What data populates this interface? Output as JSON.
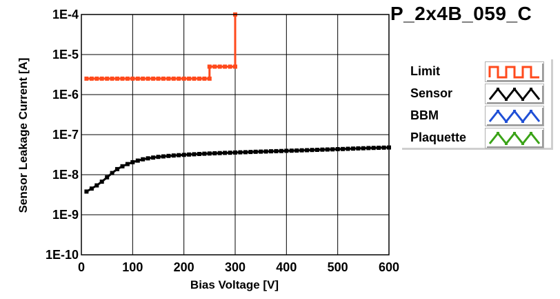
{
  "title": "P_2x4B_059_C",
  "chart_data": {
    "type": "line",
    "xlabel": "Bias Voltage [V]",
    "ylabel": "Sensor Leakage Current [A]",
    "xlim": [
      0,
      600
    ],
    "ylim": [
      1e-10,
      0.0001
    ],
    "yscale": "log",
    "grid": true,
    "x_ticks": [
      0,
      100,
      200,
      300,
      400,
      500,
      600
    ],
    "y_tick_labels": [
      "1E-4",
      "1E-5",
      "1E-6",
      "1E-7",
      "1E-8",
      "1E-9",
      "1E-10"
    ],
    "legend_position": "right",
    "series": [
      {
        "name": "Limit",
        "color": "#ff4a1c",
        "marker": "square",
        "x": [
          10,
          20,
          30,
          40,
          50,
          60,
          70,
          80,
          90,
          100,
          110,
          120,
          130,
          140,
          150,
          160,
          170,
          180,
          190,
          200,
          210,
          220,
          230,
          240,
          250,
          250,
          260,
          270,
          280,
          290,
          300,
          300
        ],
        "y": [
          2.5e-06,
          2.5e-06,
          2.5e-06,
          2.5e-06,
          2.5e-06,
          2.5e-06,
          2.5e-06,
          2.5e-06,
          2.5e-06,
          2.5e-06,
          2.5e-06,
          2.5e-06,
          2.5e-06,
          2.5e-06,
          2.5e-06,
          2.5e-06,
          2.5e-06,
          2.5e-06,
          2.5e-06,
          2.5e-06,
          2.5e-06,
          2.5e-06,
          2.5e-06,
          2.5e-06,
          2.5e-06,
          5e-06,
          5e-06,
          5e-06,
          5e-06,
          5e-06,
          5e-06,
          0.0001
        ]
      },
      {
        "name": "Sensor",
        "color": "#000000",
        "marker": "square",
        "x": [
          10,
          20,
          30,
          40,
          50,
          60,
          70,
          80,
          90,
          100,
          110,
          120,
          130,
          140,
          150,
          160,
          170,
          180,
          190,
          200,
          210,
          220,
          230,
          240,
          250,
          260,
          270,
          280,
          290,
          300,
          310,
          320,
          330,
          340,
          350,
          360,
          370,
          380,
          390,
          400,
          410,
          420,
          430,
          440,
          450,
          460,
          470,
          480,
          490,
          500,
          510,
          520,
          530,
          540,
          550,
          560,
          570,
          580,
          590,
          600
        ],
        "y": [
          3.8e-09,
          4.5e-09,
          5.4e-09,
          6.7e-09,
          8.6e-09,
          1.1e-08,
          1.38e-08,
          1.62e-08,
          1.84e-08,
          2.05e-08,
          2.25e-08,
          2.42e-08,
          2.56e-08,
          2.68e-08,
          2.78e-08,
          2.86e-08,
          2.94e-08,
          3.01e-08,
          3.07e-08,
          3.13e-08,
          3.19e-08,
          3.24e-08,
          3.29e-08,
          3.34e-08,
          3.38e-08,
          3.42e-08,
          3.46e-08,
          3.5e-08,
          3.54e-08,
          3.58e-08,
          3.62e-08,
          3.65e-08,
          3.69e-08,
          3.73e-08,
          3.77e-08,
          3.8e-08,
          3.84e-08,
          3.87e-08,
          3.91e-08,
          3.95e-08,
          3.98e-08,
          4.02e-08,
          4.06e-08,
          4.1e-08,
          4.14e-08,
          4.18e-08,
          4.22e-08,
          4.26e-08,
          4.3e-08,
          4.34e-08,
          4.38e-08,
          4.43e-08,
          4.48e-08,
          4.53e-08,
          4.58e-08,
          4.63e-08,
          4.67e-08,
          4.71e-08,
          4.74e-08,
          4.77e-08
        ]
      },
      {
        "name": "BBM",
        "color": "#1f4fd6",
        "marker": "square",
        "x": [],
        "y": []
      },
      {
        "name": "Plaquette",
        "color": "#3aa317",
        "marker": "square",
        "x": [],
        "y": []
      }
    ]
  }
}
